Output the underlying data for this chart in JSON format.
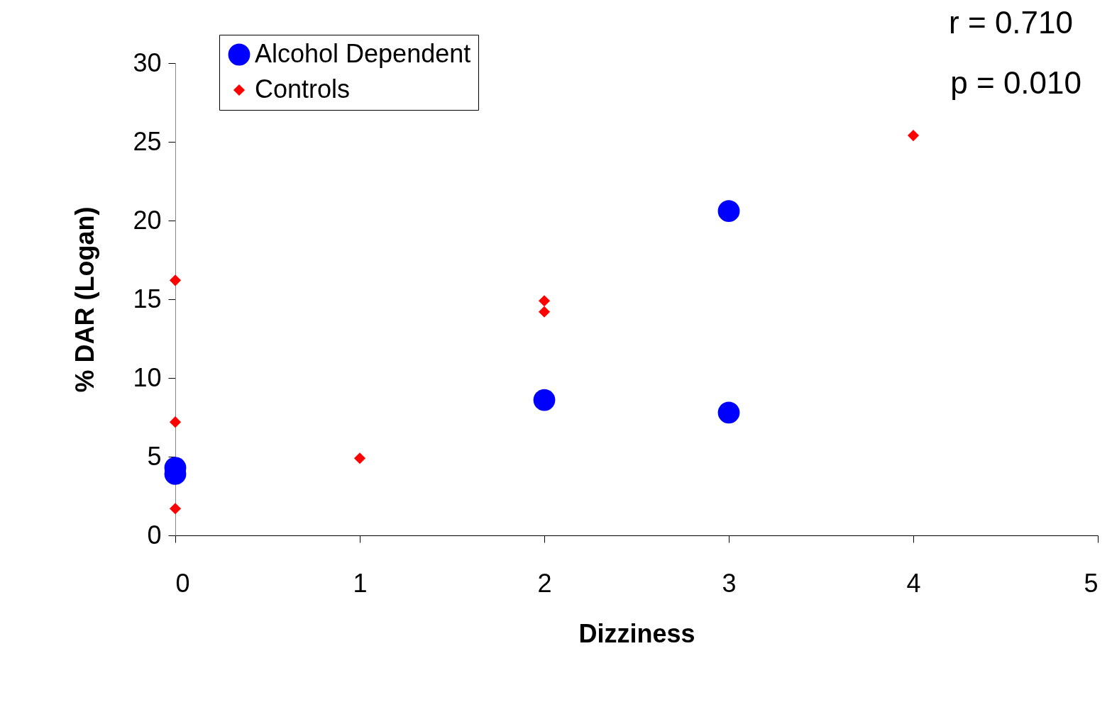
{
  "chart_data": {
    "type": "scatter",
    "xlabel": "Dizziness",
    "ylabel": "% DAR (Logan)",
    "xlim": [
      0,
      5
    ],
    "xticks": [
      0,
      1,
      2,
      3,
      4,
      5
    ],
    "ylim": [
      0,
      30
    ],
    "yticks": [
      0,
      5,
      10,
      15,
      20,
      25,
      30
    ],
    "grid": false,
    "legend": "top left",
    "annotations": [
      "r = 0.710",
      "p = 0.010"
    ],
    "series": [
      {
        "name": "Alcohol Dependent",
        "color": "#0000ff",
        "marker": "circle",
        "x": [
          0,
          0,
          2,
          3,
          3
        ],
        "values": [
          4.3,
          3.9,
          8.6,
          7.8,
          20.6
        ]
      },
      {
        "name": "Controls",
        "color": "#ff0000",
        "marker": "diamond",
        "x": [
          0,
          0,
          0,
          1,
          2,
          2,
          4
        ],
        "values": [
          16.2,
          7.2,
          1.7,
          4.9,
          14.9,
          14.2,
          25.4
        ]
      }
    ]
  }
}
